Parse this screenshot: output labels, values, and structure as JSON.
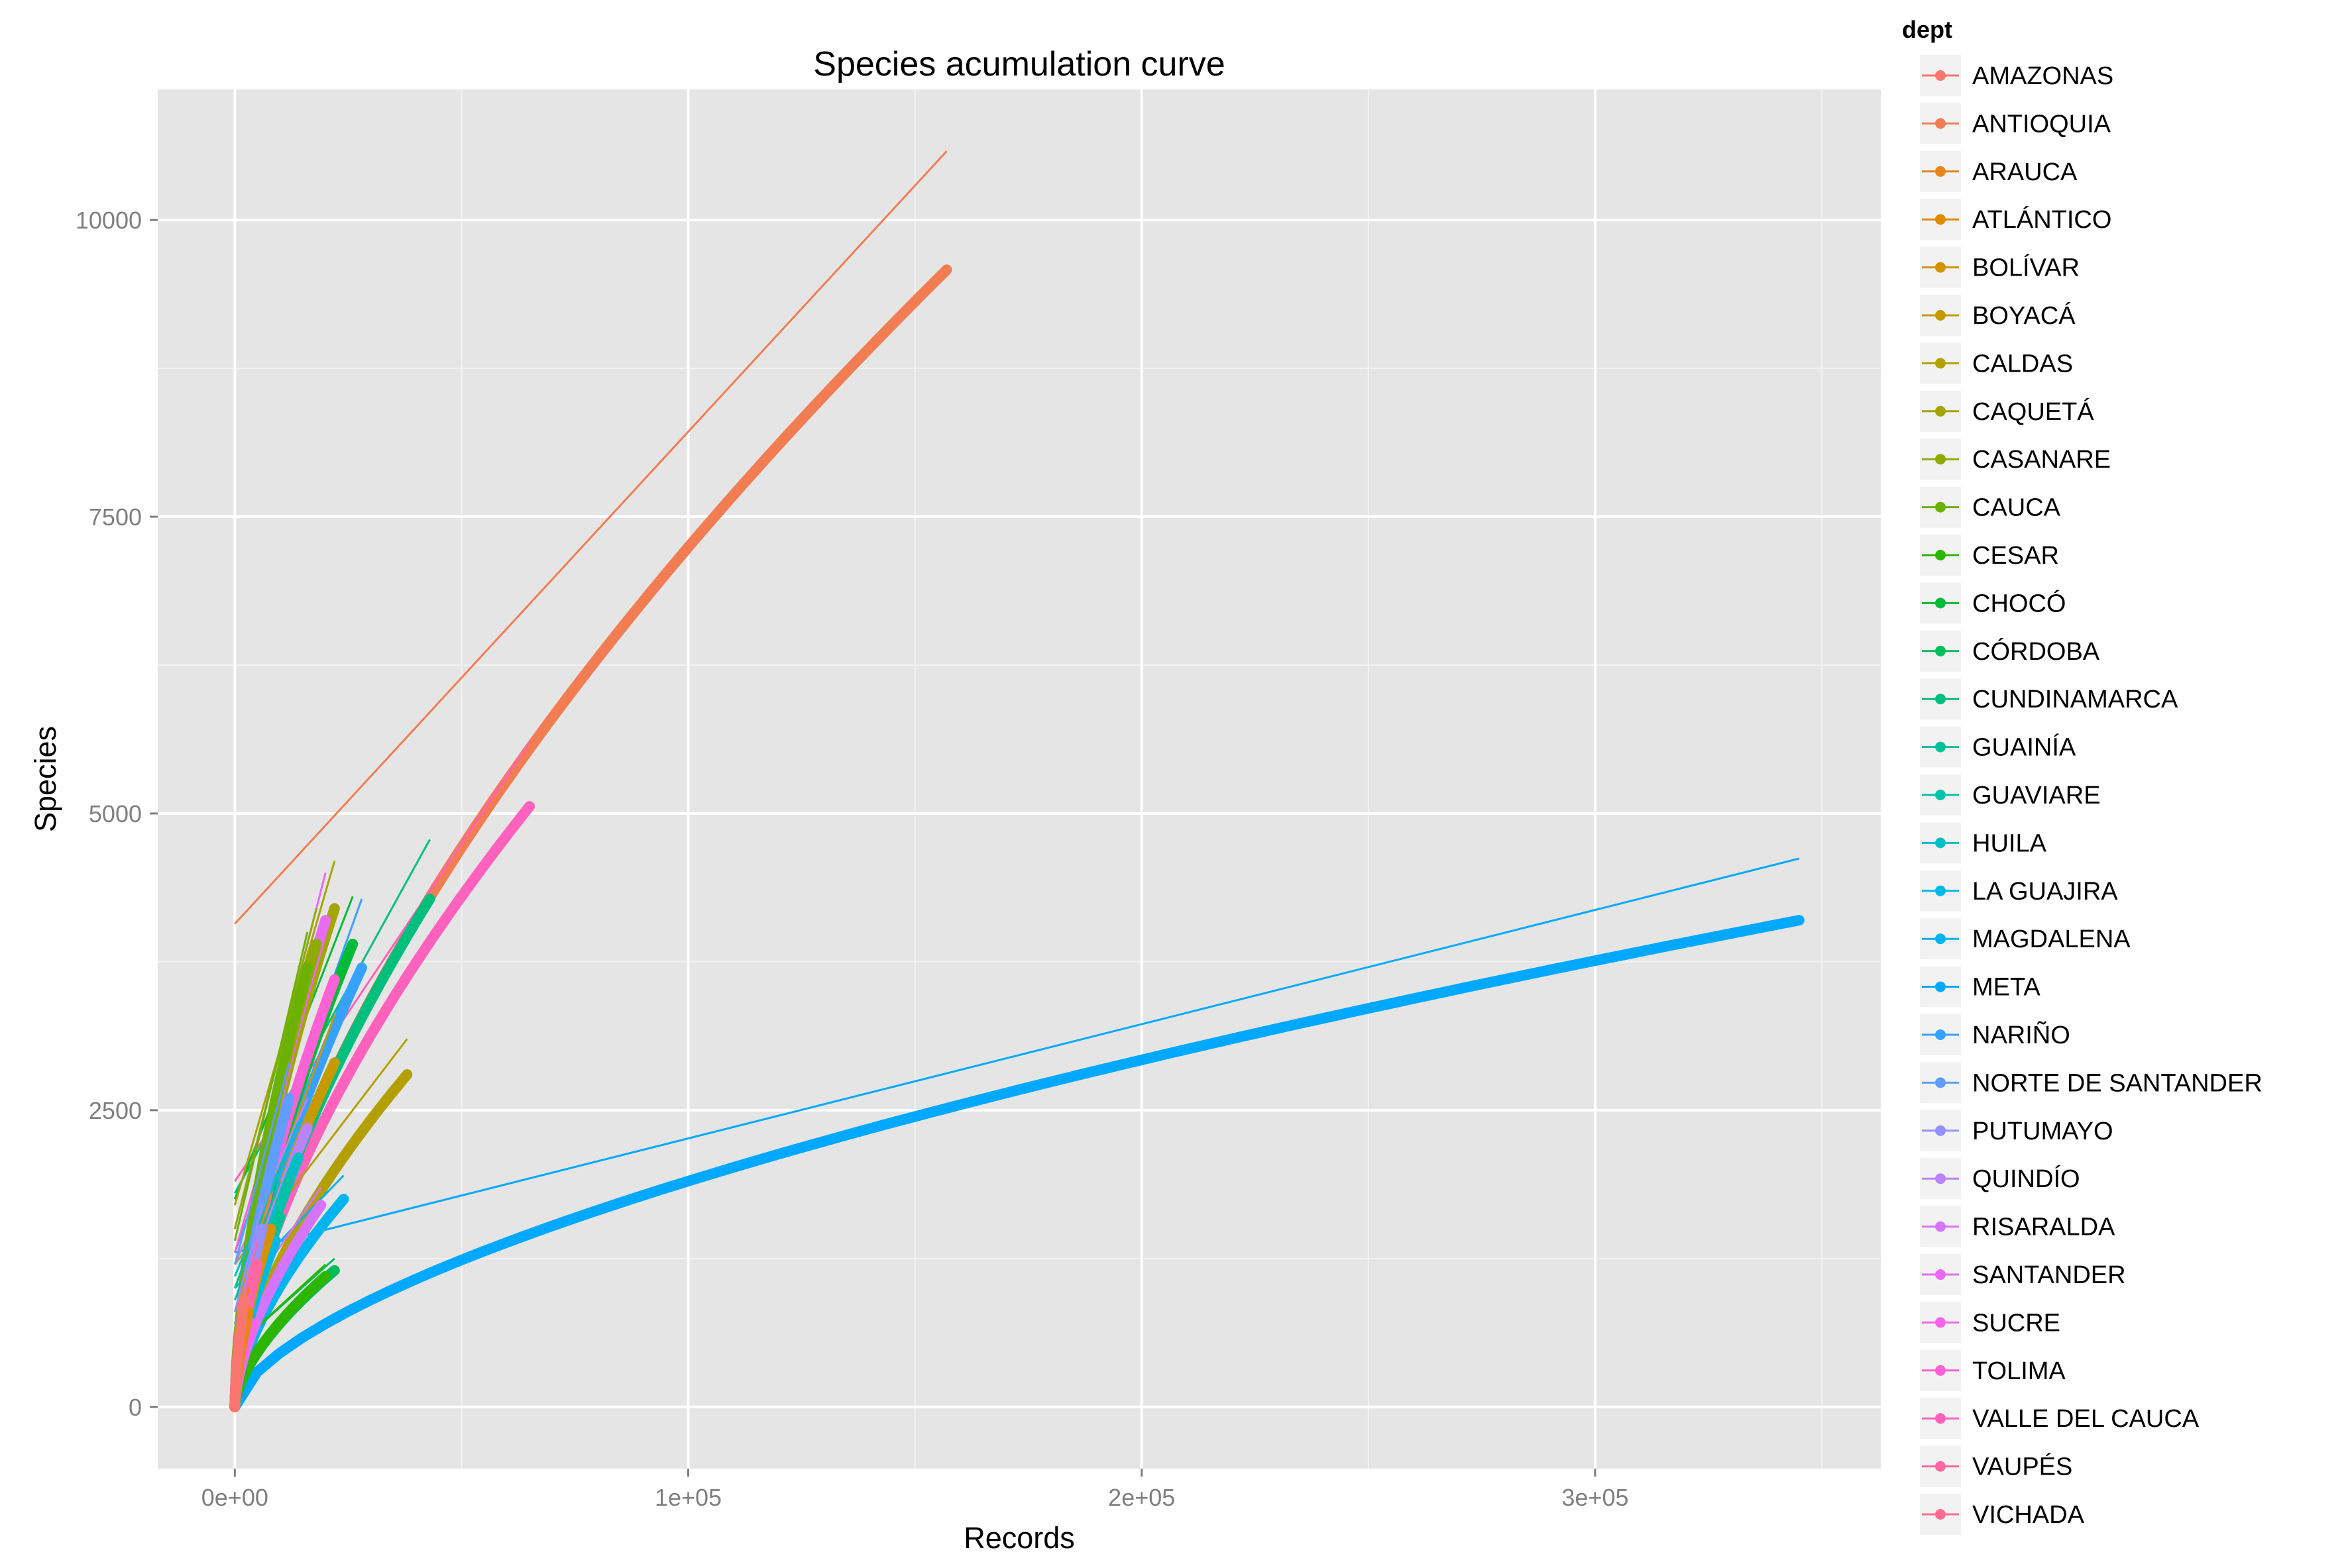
{
  "chart_data": {
    "type": "line",
    "title": "Species acumulation curve",
    "xlabel": "Records",
    "ylabel": "Species",
    "xlim": [
      -17000,
      363000
    ],
    "ylim": [
      -520,
      11100
    ],
    "x_ticks": [
      0,
      100000,
      200000,
      300000
    ],
    "x_tick_labels": [
      "0e+00",
      "1e+05",
      "2e+05",
      "3e+05"
    ],
    "x_minor": [
      50000,
      150000,
      250000,
      350000
    ],
    "y_ticks": [
      0,
      2500,
      5000,
      7500,
      10000
    ],
    "y_tick_labels": [
      "0",
      "2500",
      "5000",
      "7500",
      "10000"
    ],
    "y_minor": [
      1250,
      3750,
      6250,
      8750
    ],
    "grid": true,
    "legend": {
      "title": "dept",
      "placement": "right",
      "entries": [
        "AMAZONAS",
        "ANTIOQUIA",
        "ARAUCA",
        "ATLÁNTICO",
        "BOLÍVAR",
        "BOYACÁ",
        "CALDAS",
        "CAQUETÁ",
        "CASANARE",
        "CAUCA",
        "CESAR",
        "CHOCÓ",
        "CÓRDOBA",
        "CUNDINAMARCA",
        "GUAINÍA",
        "GUAVIARE",
        "HUILA",
        "LA GUAJIRA",
        "MAGDALENA",
        "META",
        "NARIÑO",
        "NORTE DE SANTANDER",
        "PUTUMAYO",
        "QUINDÍO",
        "RISARALDA",
        "SANTANDER",
        "SUCRE",
        "TOLIMA",
        "VALLE DEL CAUCA",
        "VAUPÉS",
        "VICHADA"
      ]
    },
    "series": [
      {
        "name": "AMAZONAS",
        "color": "#F8766D",
        "max_records": 2000,
        "max_species": 900,
        "fit": [
          [
            0,
            450
          ],
          [
            2000,
            1000
          ]
        ]
      },
      {
        "name": "ANTIOQUIA",
        "color": "#F27D52",
        "max_records": 157000,
        "max_species": 9580,
        "fit": [
          [
            0,
            4070
          ],
          [
            157000,
            10580
          ]
        ]
      },
      {
        "name": "ARAUCA",
        "color": "#E7851E",
        "max_records": 2500,
        "max_species": 700,
        "fit": [
          [
            0,
            300
          ],
          [
            2500,
            900
          ]
        ]
      },
      {
        "name": "ATLÁNTICO",
        "color": "#E08A00",
        "max_records": 3000,
        "max_species": 800,
        "fit": [
          [
            0,
            400
          ],
          [
            3000,
            1000
          ]
        ]
      },
      {
        "name": "BOLÍVAR",
        "color": "#D49200",
        "max_records": 8000,
        "max_species": 1500,
        "fit": [
          [
            0,
            800
          ],
          [
            8000,
            1800
          ]
        ]
      },
      {
        "name": "BOYACÁ",
        "color": "#C49A00",
        "max_records": 22000,
        "max_species": 2900,
        "fit": [
          [
            0,
            1000
          ],
          [
            22000,
            3300
          ]
        ]
      },
      {
        "name": "CALDAS",
        "color": "#B3A000",
        "max_records": 38000,
        "max_species": 2800,
        "fit": [
          [
            0,
            1200
          ],
          [
            38000,
            3100
          ]
        ]
      },
      {
        "name": "CAQUETÁ",
        "color": "#A3A500",
        "max_records": 22000,
        "max_species": 4200,
        "fit": [
          [
            0,
            1700
          ],
          [
            22000,
            4600
          ]
        ]
      },
      {
        "name": "CASANARE",
        "color": "#8EAB00",
        "max_records": 18000,
        "max_species": 3900,
        "fit": [
          [
            0,
            1500
          ],
          [
            18000,
            4200
          ]
        ]
      },
      {
        "name": "CAUCA",
        "color": "#6BB100",
        "max_records": 16000,
        "max_species": 3700,
        "fit": [
          [
            0,
            1400
          ],
          [
            16000,
            4000
          ]
        ]
      },
      {
        "name": "CESAR",
        "color": "#2DB600",
        "max_records": 20000,
        "max_species": 1100,
        "fit": [
          [
            0,
            500
          ],
          [
            20000,
            1200
          ]
        ]
      },
      {
        "name": "CHOCÓ",
        "color": "#00BA38",
        "max_records": 26000,
        "max_species": 3900,
        "fit": [
          [
            0,
            1750
          ],
          [
            26000,
            4300
          ]
        ]
      },
      {
        "name": "CÓRDOBA",
        "color": "#00BD5C",
        "max_records": 22000,
        "max_species": 1150,
        "fit": [
          [
            0,
            500
          ],
          [
            22000,
            1250
          ]
        ]
      },
      {
        "name": "CUNDINAMARCA",
        "color": "#00BF7D",
        "max_records": 43000,
        "max_species": 4280,
        "fit": [
          [
            0,
            1800
          ],
          [
            43000,
            4780
          ]
        ]
      },
      {
        "name": "GUAINÍA",
        "color": "#00C097",
        "max_records": 10000,
        "max_species": 1600,
        "fit": [
          [
            0,
            900
          ],
          [
            10000,
            1900
          ]
        ]
      },
      {
        "name": "GUAVIARE",
        "color": "#00C1AA",
        "max_records": 12000,
        "max_species": 1900,
        "fit": [
          [
            0,
            1000
          ],
          [
            12000,
            2200
          ]
        ]
      },
      {
        "name": "HUILA",
        "color": "#00BFC4",
        "max_records": 14000,
        "max_species": 2100,
        "fit": [
          [
            0,
            1100
          ],
          [
            14000,
            2400
          ]
        ]
      },
      {
        "name": "LA GUAJIRA",
        "color": "#00B8E7",
        "max_records": 9000,
        "max_species": 1400,
        "fit": [
          [
            0,
            700
          ],
          [
            9000,
            1700
          ]
        ]
      },
      {
        "name": "MAGDALENA",
        "color": "#00B4EF",
        "max_records": 24000,
        "max_species": 1750,
        "fit": [
          [
            0,
            1000
          ],
          [
            24000,
            1950
          ]
        ]
      },
      {
        "name": "META",
        "color": "#00A9FF",
        "max_records": 345000,
        "max_species": 4100,
        "fit": [
          [
            0,
            1300
          ],
          [
            345000,
            4620
          ]
        ]
      },
      {
        "name": "NARIÑO",
        "color": "#35A2FF",
        "max_records": 28000,
        "max_species": 3700,
        "fit": [
          [
            0,
            1300
          ],
          [
            28000,
            4280
          ]
        ]
      },
      {
        "name": "NORTE DE SANTANDER",
        "color": "#619CFF",
        "max_records": 12000,
        "max_species": 2600,
        "fit": [
          [
            0,
            1200
          ],
          [
            12000,
            2900
          ]
        ]
      },
      {
        "name": "PUTUMAYO",
        "color": "#9590FF",
        "max_records": 6000,
        "max_species": 1500,
        "fit": [
          [
            0,
            800
          ],
          [
            6000,
            1700
          ]
        ]
      },
      {
        "name": "QUINDÍO",
        "color": "#B983FF",
        "max_records": 16000,
        "max_species": 2350,
        "fit": [
          [
            0,
            1200
          ],
          [
            16000,
            2600
          ]
        ]
      },
      {
        "name": "RISARALDA",
        "color": "#D575FE",
        "max_records": 19000,
        "max_species": 1700,
        "fit": [
          [
            0,
            800
          ],
          [
            19000,
            1850
          ]
        ]
      },
      {
        "name": "SANTANDER",
        "color": "#E76BF3",
        "max_records": 20000,
        "max_species": 4100,
        "fit": [
          [
            0,
            1500
          ],
          [
            20000,
            4500
          ]
        ]
      },
      {
        "name": "SUCRE",
        "color": "#F365E6",
        "max_records": 4000,
        "max_species": 700,
        "fit": [
          [
            0,
            300
          ],
          [
            4000,
            900
          ]
        ]
      },
      {
        "name": "TOLIMA",
        "color": "#FC61D5",
        "max_records": 22000,
        "max_species": 3600,
        "fit": [
          [
            0,
            1300
          ],
          [
            22000,
            4200
          ]
        ]
      },
      {
        "name": "VALLE DEL CAUCA",
        "color": "#FF62BC",
        "max_records": 65000,
        "max_species": 5060,
        "fit": [
          [
            0,
            1900
          ],
          [
            65000,
            5600
          ]
        ]
      },
      {
        "name": "VAUPÉS",
        "color": "#FF67A4",
        "max_records": 5000,
        "max_species": 1200,
        "fit": [
          [
            0,
            600
          ],
          [
            5000,
            1400
          ]
        ]
      },
      {
        "name": "VICHADA",
        "color": "#FF6C91",
        "max_records": 3000,
        "max_species": 800,
        "fit": [
          [
            0,
            400
          ],
          [
            3000,
            1000
          ]
        ]
      }
    ]
  }
}
